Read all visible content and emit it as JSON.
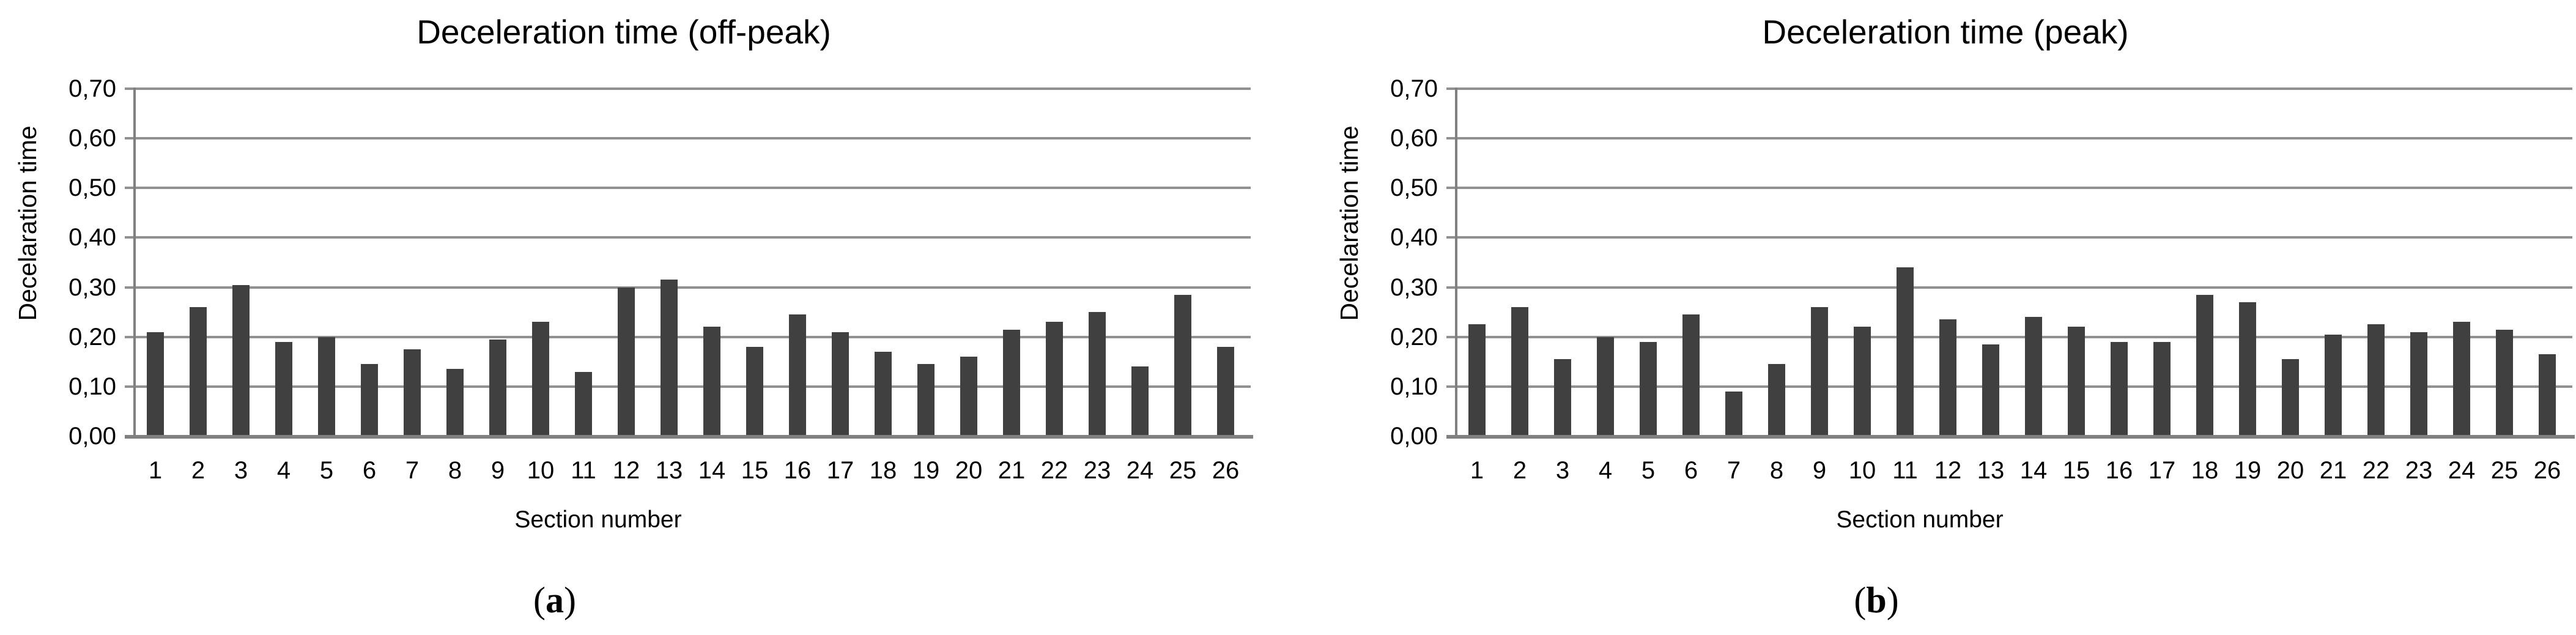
{
  "figure": {
    "colors": {
      "bar": "#404040",
      "gridline": "#919191",
      "axis": "#808080",
      "text": "#000000",
      "background": "#ffffff"
    },
    "decimal_separator": ","
  },
  "chart_data": [
    {
      "type": "bar",
      "title": "Deceleration time (off-peak)",
      "ylabel": "Decelaration time",
      "xlabel": "Section number",
      "caption": {
        "open": "(",
        "letter": "a",
        "close": ")"
      },
      "legend": "none",
      "grid": "horizontal",
      "ylim": [
        0.0,
        0.7
      ],
      "y_ticks": [
        0.7,
        0.6,
        0.5,
        0.4,
        0.3,
        0.2,
        0.1,
        0.0
      ],
      "y_tick_labels": [
        "0,70",
        "0,60",
        "0,50",
        "0,40",
        "0,30",
        "0,20",
        "0,10",
        "0,00"
      ],
      "categories": [
        "1",
        "2",
        "3",
        "4",
        "5",
        "6",
        "7",
        "8",
        "9",
        "10",
        "11",
        "12",
        "13",
        "14",
        "15",
        "16",
        "17",
        "18",
        "19",
        "20",
        "21",
        "22",
        "23",
        "24",
        "25",
        "26"
      ],
      "values": [
        0.21,
        0.26,
        0.305,
        0.19,
        0.2,
        0.145,
        0.175,
        0.135,
        0.195,
        0.23,
        0.13,
        0.3,
        0.315,
        0.22,
        0.18,
        0.245,
        0.21,
        0.17,
        0.145,
        0.16,
        0.215,
        0.23,
        0.25,
        0.14,
        0.285,
        0.18
      ]
    },
    {
      "type": "bar",
      "title": "Deceleration time (peak)",
      "ylabel": "Decelaration time",
      "xlabel": "Section number",
      "caption": {
        "open": "(",
        "letter": "b",
        "close": ")"
      },
      "legend": "none",
      "grid": "horizontal",
      "ylim": [
        0.0,
        0.7
      ],
      "y_ticks": [
        0.7,
        0.6,
        0.5,
        0.4,
        0.3,
        0.2,
        0.1,
        0.0
      ],
      "y_tick_labels": [
        "0,70",
        "0,60",
        "0,50",
        "0,40",
        "0,30",
        "0,20",
        "0,10",
        "0,00"
      ],
      "categories": [
        "1",
        "2",
        "3",
        "4",
        "5",
        "6",
        "7",
        "8",
        "9",
        "10",
        "11",
        "12",
        "13",
        "14",
        "15",
        "16",
        "17",
        "18",
        "19",
        "20",
        "21",
        "22",
        "23",
        "24",
        "25",
        "26"
      ],
      "values": [
        0.225,
        0.26,
        0.155,
        0.2,
        0.19,
        0.245,
        0.09,
        0.145,
        0.26,
        0.22,
        0.34,
        0.235,
        0.185,
        0.24,
        0.22,
        0.19,
        0.19,
        0.285,
        0.27,
        0.155,
        0.205,
        0.225,
        0.21,
        0.23,
        0.215,
        0.165
      ]
    }
  ]
}
